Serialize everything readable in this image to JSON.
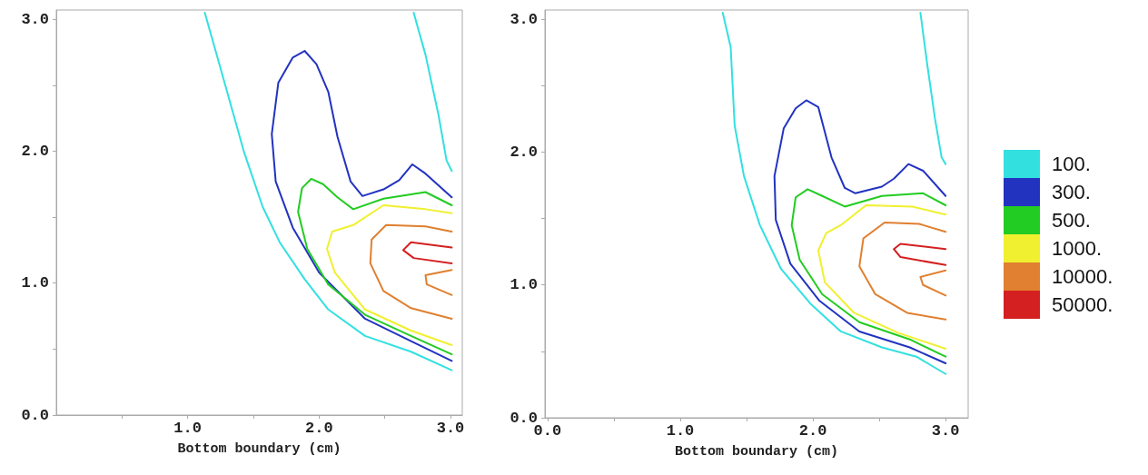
{
  "chart_data": [
    {
      "type": "line",
      "xlabel": "Bottom boundary (cm)",
      "xlim": [
        0,
        3.09
      ],
      "ylim": [
        0,
        3.07
      ],
      "legend": false,
      "grid": false,
      "marker": "none",
      "line_style": "solid",
      "xticks": [
        {
          "value": 0.5,
          "label": null
        },
        {
          "value": 1,
          "label": "1.0"
        },
        {
          "value": 1.5,
          "label": null
        },
        {
          "value": 2,
          "label": "2.0"
        },
        {
          "value": 2.5,
          "label": null
        },
        {
          "value": 3,
          "label": "3.0"
        }
      ],
      "yticks": [
        {
          "value": 0,
          "label": "0.0"
        },
        {
          "value": 0.5,
          "label": null
        },
        {
          "value": 1,
          "label": "1.0"
        },
        {
          "value": 1.5,
          "label": null
        },
        {
          "value": 2,
          "label": "2.0"
        },
        {
          "value": 2.5,
          "label": null
        },
        {
          "value": 3,
          "label": "3.0"
        }
      ],
      "series": [
        {
          "color": "#33e0e0",
          "x": [
            1.13,
            1.19,
            1.3,
            1.43,
            1.57,
            1.7,
            1.89,
            2.07,
            2.35,
            2.7,
            3.01,
            null,
            2.72,
            2.81,
            2.91,
            2.97,
            3.01
          ],
          "values": [
            3.05,
            2.84,
            2.45,
            1.99,
            1.58,
            1.31,
            1.03,
            0.8,
            0.6,
            0.48,
            0.34,
            null,
            3.05,
            2.73,
            2.27,
            1.93,
            1.85
          ]
        },
        {
          "color": "#2233c0",
          "x": [
            3.01,
            2.7,
            2.35,
            2.0,
            1.8,
            1.67,
            1.64,
            1.69,
            1.8,
            1.89,
            1.98,
            2.07,
            2.14,
            2.24,
            2.33,
            2.49,
            2.61,
            2.71,
            2.81,
            3.01
          ],
          "values": [
            0.41,
            0.56,
            0.73,
            1.08,
            1.42,
            1.77,
            2.13,
            2.52,
            2.71,
            2.76,
            2.66,
            2.45,
            2.11,
            1.77,
            1.66,
            1.71,
            1.78,
            1.9,
            1.83,
            1.65
          ]
        },
        {
          "color": "#22cc22",
          "x": [
            3.01,
            2.7,
            2.35,
            2.07,
            1.91,
            1.84,
            1.87,
            1.94,
            2.03,
            2.14,
            2.26,
            2.49,
            2.81,
            3.01
          ],
          "values": [
            0.46,
            0.6,
            0.76,
            0.99,
            1.26,
            1.54,
            1.72,
            1.79,
            1.75,
            1.65,
            1.56,
            1.64,
            1.69,
            1.59
          ]
        },
        {
          "color": "#f0f030",
          "x": [
            3.01,
            2.7,
            2.35,
            2.12,
            2.06,
            2.1,
            2.26,
            2.49,
            2.81,
            3.01
          ],
          "values": [
            0.53,
            0.64,
            0.8,
            1.08,
            1.26,
            1.39,
            1.44,
            1.59,
            1.56,
            1.53
          ]
        },
        {
          "color": "#e08030",
          "x": [
            3.01,
            2.7,
            2.49,
            2.39,
            2.4,
            2.51,
            2.81,
            3.01,
            null,
            3.01,
            2.81,
            2.82,
            3.01
          ],
          "values": [
            0.73,
            0.81,
            0.94,
            1.15,
            1.33,
            1.44,
            1.43,
            1.39,
            null,
            1.1,
            1.06,
            0.99,
            0.91
          ]
        },
        {
          "color": "#d42020",
          "x": [
            3.01,
            2.72,
            2.64,
            2.7,
            3.01
          ],
          "values": [
            1.15,
            1.19,
            1.25,
            1.31,
            1.27
          ]
        }
      ]
    },
    {
      "type": "line",
      "xlabel": "Bottom boundary (cm)",
      "xlim": [
        -0.02,
        3.17
      ],
      "ylim": [
        0,
        3.07
      ],
      "legend": "right",
      "grid": false,
      "marker": "none",
      "line_style": "solid",
      "xticks": [
        {
          "value": 0,
          "label": "0.0"
        },
        {
          "value": 0.5,
          "label": null
        },
        {
          "value": 1,
          "label": "1.0"
        },
        {
          "value": 1.5,
          "label": null
        },
        {
          "value": 2,
          "label": "2.0"
        },
        {
          "value": 2.5,
          "label": null
        },
        {
          "value": 3,
          "label": "3.0"
        }
      ],
      "yticks": [
        {
          "value": 0,
          "label": "0.0"
        },
        {
          "value": 0.5,
          "label": null
        },
        {
          "value": 1,
          "label": "1.0"
        },
        {
          "value": 1.5,
          "label": null
        },
        {
          "value": 2,
          "label": "2.0"
        },
        {
          "value": 2.5,
          "label": null
        },
        {
          "value": 3,
          "label": "3.0"
        }
      ],
      "series": [
        {
          "name": "100.",
          "color": "#33e0e0",
          "x": [
            1.32,
            1.38,
            1.41,
            1.48,
            1.6,
            1.76,
            1.98,
            2.21,
            2.52,
            2.78,
            3.0,
            null,
            2.81,
            2.86,
            2.92,
            2.97,
            3.0
          ],
          "values": [
            3.05,
            2.79,
            2.2,
            1.82,
            1.45,
            1.12,
            0.86,
            0.65,
            0.53,
            0.46,
            0.33,
            null,
            3.05,
            2.67,
            2.25,
            1.96,
            1.91
          ]
        },
        {
          "name": "300.",
          "color": "#2233c0",
          "x": [
            3.0,
            2.73,
            2.35,
            2.05,
            1.83,
            1.72,
            1.71,
            1.78,
            1.87,
            1.95,
            2.04,
            2.09,
            2.14,
            2.24,
            2.32,
            2.52,
            2.61,
            2.72,
            2.83,
            3.0
          ],
          "values": [
            0.41,
            0.53,
            0.65,
            0.88,
            1.16,
            1.49,
            1.82,
            2.18,
            2.33,
            2.39,
            2.34,
            2.15,
            1.96,
            1.73,
            1.69,
            1.74,
            1.8,
            1.91,
            1.86,
            1.67
          ]
        },
        {
          "name": "500.",
          "color": "#22cc22",
          "x": [
            3.0,
            2.73,
            2.35,
            2.07,
            1.9,
            1.84,
            1.87,
            1.96,
            2.07,
            2.24,
            2.52,
            2.83,
            3.0
          ],
          "values": [
            0.46,
            0.59,
            0.72,
            0.93,
            1.19,
            1.45,
            1.66,
            1.72,
            1.67,
            1.59,
            1.67,
            1.69,
            1.6
          ]
        },
        {
          "name": "1000.",
          "color": "#f0f030",
          "x": [
            3.0,
            2.64,
            2.31,
            2.09,
            2.04,
            2.1,
            2.21,
            2.4,
            2.75,
            3.0
          ],
          "values": [
            0.52,
            0.64,
            0.79,
            1.02,
            1.26,
            1.39,
            1.45,
            1.6,
            1.59,
            1.53
          ]
        },
        {
          "name": "10000.",
          "color": "#e08030",
          "x": [
            3.0,
            2.71,
            2.47,
            2.35,
            2.38,
            2.54,
            2.8,
            3.0,
            null,
            3.0,
            2.81,
            2.83,
            3.0
          ],
          "values": [
            0.74,
            0.79,
            0.93,
            1.14,
            1.35,
            1.47,
            1.46,
            1.4,
            null,
            1.11,
            1.06,
            1.0,
            0.92
          ]
        },
        {
          "name": "50000.",
          "color": "#d42020",
          "x": [
            3.0,
            2.66,
            2.61,
            2.66,
            3.0
          ],
          "values": [
            1.15,
            1.21,
            1.27,
            1.31,
            1.27
          ]
        }
      ]
    }
  ]
}
